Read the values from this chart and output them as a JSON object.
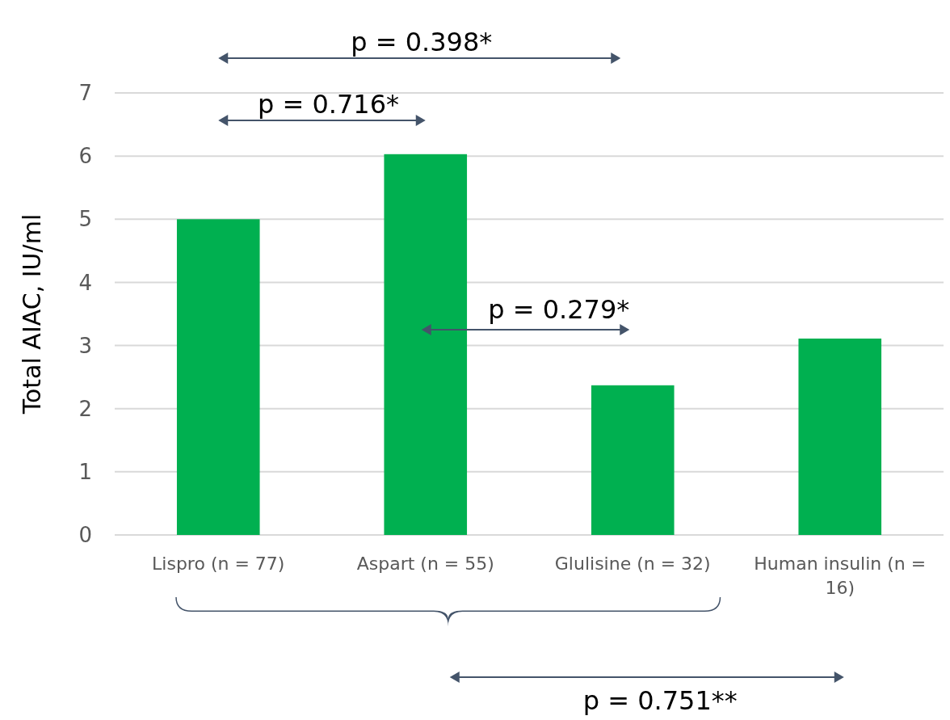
{
  "chart_data": {
    "type": "bar",
    "ylabel": "Total AIAC, IU/ml",
    "categories": [
      "Lispro (n = 77)",
      "Aspart (n = 55)",
      "Glulisine (n = 32)",
      "Human insulin (n = 16)"
    ],
    "values": [
      5.0,
      6.03,
      2.37,
      3.11
    ],
    "color": "#00b050",
    "ylim": [
      0,
      7
    ],
    "yticks": [
      0,
      1,
      2,
      3,
      4,
      5,
      6,
      7
    ],
    "grid": "y",
    "annotations": [
      "p = 0.398*",
      "p = 0.716*",
      "p = 0.279*",
      "p = 0.751**"
    ]
  }
}
